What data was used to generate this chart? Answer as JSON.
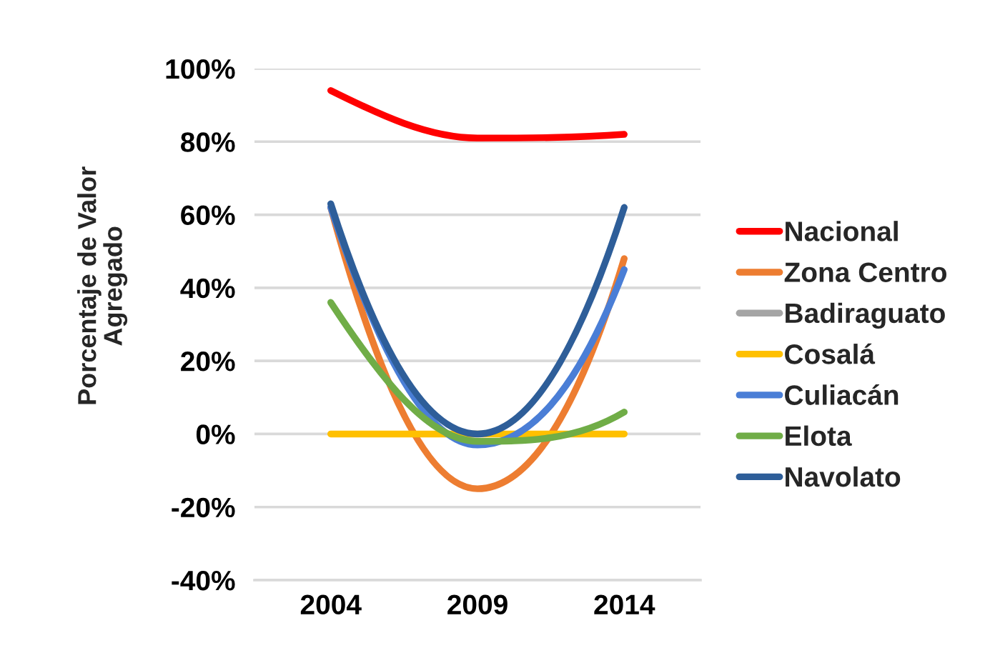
{
  "chart_data": {
    "type": "line",
    "ylabel": "Porcentaje de Valor\nAgregado",
    "categories": [
      "2004",
      "2009",
      "2014"
    ],
    "series": [
      {
        "name": "Nacional",
        "color": "#ff0000",
        "values": [
          94,
          81,
          82
        ]
      },
      {
        "name": "Zona Centro",
        "color": "#ed7d31",
        "values": [
          62,
          -15,
          48
        ]
      },
      {
        "name": "Badiraguato",
        "color": "#a5a5a5",
        "values": [
          null,
          null,
          null
        ]
      },
      {
        "name": "Cosalá",
        "color": "#ffc000",
        "values": [
          0,
          0,
          0
        ]
      },
      {
        "name": "Culiacán",
        "color": "#4a7ed6",
        "values": [
          62,
          -3,
          45
        ]
      },
      {
        "name": "Elota",
        "color": "#70ad47",
        "values": [
          36,
          -2,
          6
        ]
      },
      {
        "name": "Navolato",
        "color": "#2e5e99",
        "values": [
          63,
          0,
          62
        ]
      }
    ],
    "ylim": [
      -40,
      100
    ],
    "yticks": [
      {
        "value": -40,
        "label": "-40%"
      },
      {
        "value": -20,
        "label": "-20%"
      },
      {
        "value": 0,
        "label": "0%"
      },
      {
        "value": 20,
        "label": "20%"
      },
      {
        "value": 40,
        "label": "40%"
      },
      {
        "value": 60,
        "label": "60%"
      },
      {
        "value": 80,
        "label": "80%"
      },
      {
        "value": 100,
        "label": "100%"
      }
    ],
    "grid": "y",
    "legend": "right"
  }
}
